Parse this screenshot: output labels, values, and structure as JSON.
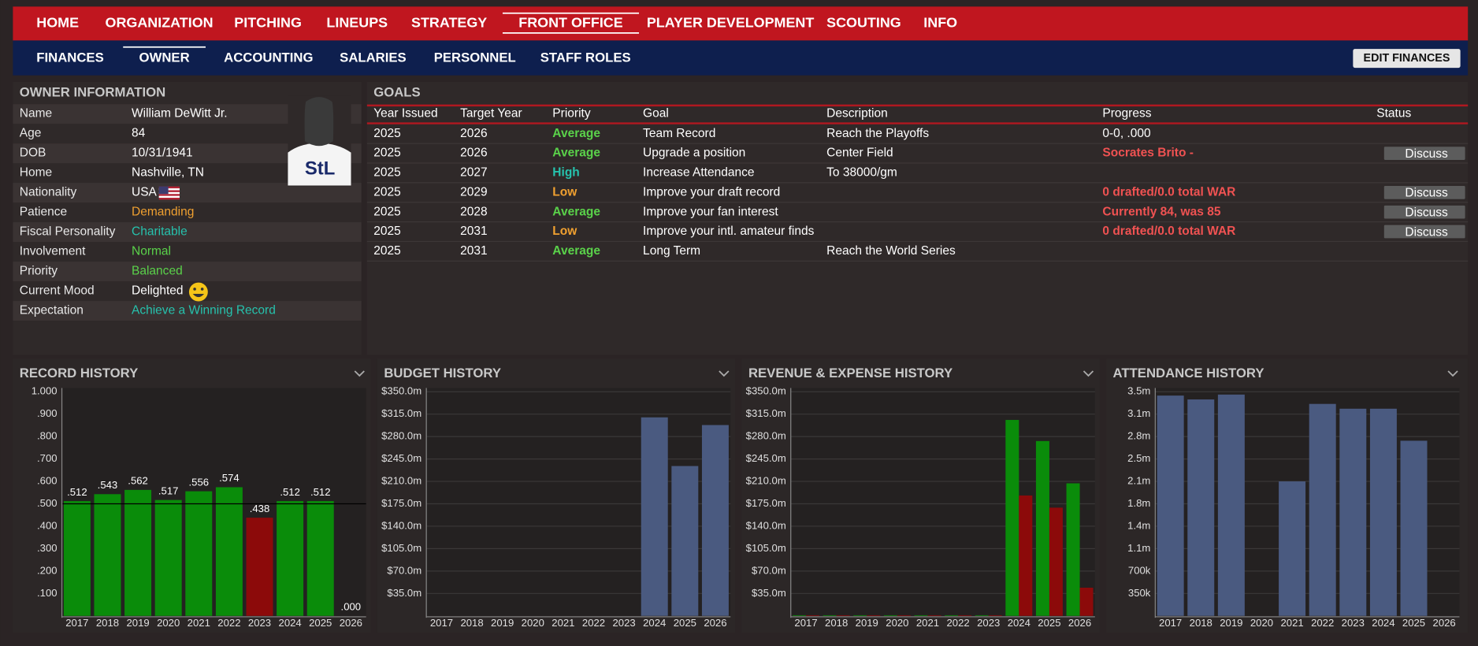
{
  "nav": {
    "items": [
      "HOME",
      "ORGANIZATION",
      "PITCHING",
      "LINEUPS",
      "STRATEGY",
      "FRONT OFFICE",
      "PLAYER DEVELOPMENT",
      "SCOUTING",
      "INFO"
    ],
    "active": 5
  },
  "subnav": {
    "items": [
      "FINANCES",
      "OWNER",
      "ACCOUNTING",
      "SALARIES",
      "PERSONNEL",
      "STAFF ROLES"
    ],
    "active": 1,
    "button": "EDIT FINANCES"
  },
  "owner": {
    "title": "OWNER INFORMATION",
    "rows": [
      {
        "label": "Name",
        "value": "William DeWitt Jr."
      },
      {
        "label": "Age",
        "value": "84"
      },
      {
        "label": "DOB",
        "value": "10/31/1941"
      },
      {
        "label": "Home",
        "value": "Nashville, TN"
      },
      {
        "label": "Nationality",
        "value": "USA"
      },
      {
        "label": "Patience",
        "value": "Demanding",
        "color": "#f0a030"
      },
      {
        "label": "Fiscal Personality",
        "value": "Charitable",
        "color": "#26c2ad"
      },
      {
        "label": "Involvement",
        "value": "Normal",
        "color": "#5ad24a"
      },
      {
        "label": "Priority",
        "value": "Balanced",
        "color": "#5ad24a"
      },
      {
        "label": "Current Mood",
        "value": "Delighted"
      },
      {
        "label": "Expectation",
        "value": "Achieve a Winning Record",
        "color": "#26c2ad"
      }
    ]
  },
  "goals": {
    "title": "GOALS",
    "columns": [
      "Year Issued",
      "Target Year",
      "Priority",
      "Goal",
      "Description",
      "Progress",
      "Status"
    ],
    "rows": [
      {
        "year_issued": "2025",
        "target_year": "2026",
        "priority": "Average",
        "priority_color": "#5ad24a",
        "goal": "Team Record",
        "description": "Reach the Playoffs",
        "progress": "0-0, .000"
      },
      {
        "year_issued": "2025",
        "target_year": "2026",
        "priority": "Average",
        "priority_color": "#5ad24a",
        "goal": "Upgrade a position",
        "description": "Center Field",
        "progress": "Socrates Brito -",
        "progress_color": "#f05252",
        "status": "Discuss"
      },
      {
        "year_issued": "2025",
        "target_year": "2027",
        "priority": "High",
        "priority_color": "#26c2ad",
        "goal": "Increase Attendance",
        "description": "To 38000/gm"
      },
      {
        "year_issued": "2025",
        "target_year": "2029",
        "priority": "Low",
        "priority_color": "#f0a030",
        "goal": "Improve your draft record",
        "progress": "0 drafted/0.0 total WAR",
        "progress_color": "#f05252",
        "status": "Discuss"
      },
      {
        "year_issued": "2025",
        "target_year": "2028",
        "priority": "Average",
        "priority_color": "#5ad24a",
        "goal": "Improve your fan interest",
        "progress": "Currently 84, was 85",
        "progress_color": "#f05252",
        "status": "Discuss"
      },
      {
        "year_issued": "2025",
        "target_year": "2031",
        "priority": "Low",
        "priority_color": "#f0a030",
        "goal": "Improve your intl. amateur finds",
        "progress": "0 drafted/0.0 total WAR",
        "progress_color": "#f05252",
        "status": "Discuss"
      },
      {
        "year_issued": "2025",
        "target_year": "2031",
        "priority": "Average",
        "priority_color": "#5ad24a",
        "goal": "Long Term",
        "description": "Reach the World Series"
      }
    ]
  },
  "chart_data": [
    {
      "type": "bar",
      "title": "RECORD HISTORY",
      "categories": [
        2017,
        2018,
        2019,
        2020,
        2021,
        2022,
        2023,
        2024,
        2025,
        2026
      ],
      "values": [
        0.512,
        0.543,
        0.562,
        0.517,
        0.556,
        0.574,
        0.438,
        0.512,
        0.512,
        0
      ],
      "value_labels": [
        ".512",
        ".543",
        ".562",
        ".517",
        ".556",
        ".574",
        ".438",
        ".512",
        ".512",
        ".000"
      ],
      "colors": [
        "#0a8c0a",
        "#0a8c0a",
        "#0a8c0a",
        "#0a8c0a",
        "#0a8c0a",
        "#0a8c0a",
        "#8c0a0a",
        "#0a8c0a",
        "#0a8c0a",
        "#0a8c0a"
      ],
      "ylim": [
        0,
        1
      ],
      "yticks": [
        {
          "value": 0.1,
          "label": ".100"
        },
        {
          "value": 0.2,
          "label": ".200"
        },
        {
          "value": 0.3,
          "label": ".300"
        },
        {
          "value": 0.4,
          "label": ".400"
        },
        {
          "value": 0.5,
          "label": ".500"
        },
        {
          "value": 0.6,
          "label": ".600"
        },
        {
          "value": 0.7,
          "label": ".700"
        },
        {
          "value": 0.8,
          "label": ".800"
        },
        {
          "value": 0.9,
          "label": ".900"
        },
        {
          "value": 1,
          "label": "1.000"
        }
      ],
      "reference_line": 0.5,
      "grid": false
    },
    {
      "type": "bar",
      "title": "BUDGET HISTORY",
      "categories": [
        2017,
        2018,
        2019,
        2020,
        2021,
        2022,
        2023,
        2024,
        2025,
        2026
      ],
      "values": [
        0,
        0,
        0,
        0,
        0,
        0,
        0,
        310,
        234,
        298
      ],
      "color": "#4a5a80",
      "ylim": [
        0,
        350
      ],
      "yticks": [
        {
          "value": 35,
          "label": "$35.0m"
        },
        {
          "value": 70,
          "label": "$70.0m"
        },
        {
          "value": 105,
          "label": "$105.0m"
        },
        {
          "value": 140,
          "label": "$140.0m"
        },
        {
          "value": 175,
          "label": "$175.0m"
        },
        {
          "value": 210,
          "label": "$210.0m"
        },
        {
          "value": 245,
          "label": "$245.0m"
        },
        {
          "value": 280,
          "label": "$280.0m"
        },
        {
          "value": 315,
          "label": "$315.0m"
        },
        {
          "value": 350,
          "label": "$350.0m"
        }
      ],
      "grid": true
    },
    {
      "type": "grouped_bar",
      "title": "REVENUE & EXPENSE HISTORY",
      "categories": [
        2017,
        2018,
        2019,
        2020,
        2021,
        2022,
        2023,
        2024,
        2025,
        2026
      ],
      "series": [
        {
          "color": "#0a8c0a",
          "values": [
            1,
            1,
            1,
            1,
            1,
            1,
            1,
            306,
            273,
            207
          ]
        },
        {
          "color": "#8c0a0a",
          "values": [
            1,
            1,
            1,
            1,
            1,
            1,
            1,
            188,
            169,
            44
          ]
        }
      ],
      "ylim": [
        0,
        350
      ],
      "yticks": [
        {
          "value": 35,
          "label": "$35.0m"
        },
        {
          "value": 70,
          "label": "$70.0m"
        },
        {
          "value": 105,
          "label": "$105.0m"
        },
        {
          "value": 140,
          "label": "$140.0m"
        },
        {
          "value": 175,
          "label": "$175.0m"
        },
        {
          "value": 210,
          "label": "$210.0m"
        },
        {
          "value": 245,
          "label": "$245.0m"
        },
        {
          "value": 280,
          "label": "$280.0m"
        },
        {
          "value": 315,
          "label": "$315.0m"
        },
        {
          "value": 350,
          "label": "$350.0m"
        }
      ],
      "grid": true
    },
    {
      "type": "bar",
      "title": "ATTENDANCE HISTORY",
      "categories": [
        2017,
        2018,
        2019,
        2020,
        2021,
        2022,
        2023,
        2024,
        2025,
        2026
      ],
      "values": [
        3440000,
        3380000,
        3456000,
        0,
        2100000,
        3310000,
        3235000,
        3235000,
        2735000,
        0
      ],
      "color": "#4a5a80",
      "ylim": [
        0,
        3500000
      ],
      "yticks": [
        {
          "value": 350000,
          "label": "350k"
        },
        {
          "value": 700000,
          "label": "700k"
        },
        {
          "value": 1050000,
          "label": "1.1m"
        },
        {
          "value": 1400000,
          "label": "1.4m"
        },
        {
          "value": 1750000,
          "label": "1.8m"
        },
        {
          "value": 2100000,
          "label": "2.1m"
        },
        {
          "value": 2450000,
          "label": "2.5m"
        },
        {
          "value": 2800000,
          "label": "2.8m"
        },
        {
          "value": 3150000,
          "label": "3.1m"
        },
        {
          "value": 3500000,
          "label": "3.5m"
        }
      ],
      "grid": true
    }
  ]
}
